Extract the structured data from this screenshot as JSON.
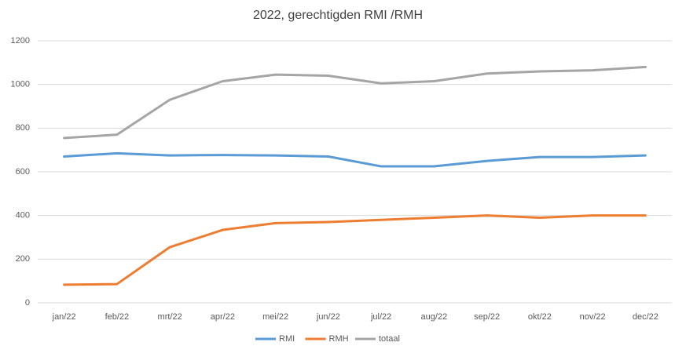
{
  "chart_data": {
    "type": "line",
    "title": "2022, gerechtigden RMI /RMH",
    "categories": [
      "jan/22",
      "feb/22",
      "mrt/22",
      "apr/22",
      "mei/22",
      "jun/22",
      "jul/22",
      "aug/22",
      "sep/22",
      "okt/22",
      "nov/22",
      "dec/22"
    ],
    "series": [
      {
        "name": "RMI",
        "color": "#5b9bd5",
        "values": [
          670,
          685,
          675,
          677,
          675,
          670,
          625,
          625,
          650,
          668,
          668,
          675
        ]
      },
      {
        "name": "RMH",
        "color": "#ed7d31",
        "values": [
          83,
          86,
          255,
          334,
          365,
          370,
          380,
          390,
          400,
          390,
          400,
          400
        ]
      },
      {
        "name": "totaal",
        "color": "#a5a5a5",
        "values": [
          755,
          770,
          930,
          1015,
          1045,
          1040,
          1005,
          1015,
          1050,
          1060,
          1065,
          1080
        ]
      }
    ],
    "ylim": [
      0,
      1200
    ],
    "yticks": [
      0,
      200,
      400,
      600,
      800,
      1000,
      1200
    ],
    "grid": true
  }
}
